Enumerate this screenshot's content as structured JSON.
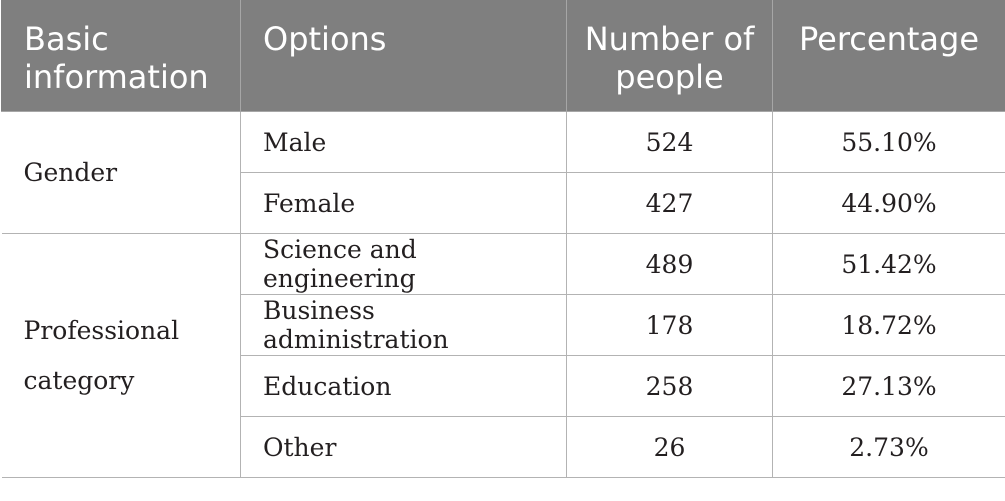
{
  "headers": {
    "basic_information": "Basic information",
    "options": "Options",
    "number_of_people": "Number of people",
    "percentage": "Percentage"
  },
  "groups": [
    {
      "label": "Gender",
      "rows": [
        {
          "option": "Male",
          "number": "524",
          "percentage": "55.10%"
        },
        {
          "option": "Female",
          "number": "427",
          "percentage": "44.90%"
        }
      ]
    },
    {
      "label": "Professional category",
      "rows": [
        {
          "option": "Science and engineering",
          "number": "489",
          "percentage": "51.42%"
        },
        {
          "option": "Business administration",
          "number": "178",
          "percentage": "18.72%"
        },
        {
          "option": "Education",
          "number": "258",
          "percentage": "27.13%"
        },
        {
          "option": "Other",
          "number": "26",
          "percentage": "2.73%"
        }
      ]
    }
  ]
}
